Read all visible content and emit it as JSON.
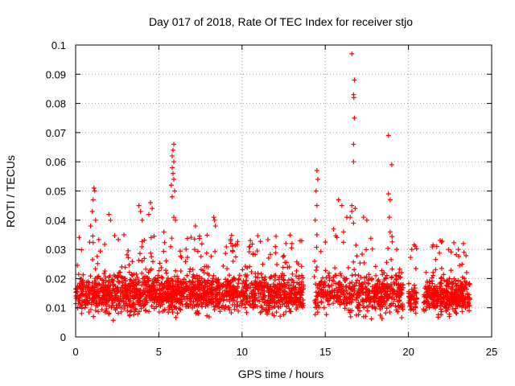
{
  "chart_data": {
    "type": "scatter",
    "title": "Day 017 of 2018, Rate Of TEC Index for receiver stjo",
    "xlabel": "GPS time / hours",
    "ylabel": "ROTI / TECUs",
    "xlim": [
      0,
      25
    ],
    "ylim": [
      0,
      0.1
    ],
    "xticks": [
      0,
      5,
      10,
      15,
      20,
      25
    ],
    "xtick_labels": [
      "0",
      "5",
      "10",
      "15",
      "20",
      "25"
    ],
    "yticks": [
      0,
      0.01,
      0.02,
      0.03,
      0.04,
      0.05,
      0.06,
      0.07,
      0.08,
      0.09,
      0.1
    ],
    "ytick_labels": [
      "0",
      "0.01",
      "0.02",
      "0.03",
      "0.04",
      "0.05",
      "0.06",
      "0.07",
      "0.08",
      "0.09",
      "0.1"
    ],
    "grid": true,
    "marker": "+",
    "color": "#ff0000",
    "series": [
      {
        "name": "ROTI",
        "bulk_segments": [
          {
            "x_start": 0.0,
            "x_end": 13.7,
            "y_base": 0.015,
            "y_spread": 0.009,
            "count": 1700
          },
          {
            "x_start": 14.3,
            "x_end": 19.7,
            "y_base": 0.015,
            "y_spread": 0.009,
            "count": 520
          },
          {
            "x_start": 20.0,
            "x_end": 20.5,
            "y_base": 0.013,
            "y_spread": 0.007,
            "count": 60
          },
          {
            "x_start": 20.9,
            "x_end": 23.7,
            "y_base": 0.014,
            "y_spread": 0.008,
            "count": 380
          }
        ],
        "notable_points": [
          {
            "x": 1.1,
            "y": 0.051
          },
          {
            "x": 1.15,
            "y": 0.05
          },
          {
            "x": 1.05,
            "y": 0.047
          },
          {
            "x": 1.0,
            "y": 0.043
          },
          {
            "x": 1.2,
            "y": 0.04
          },
          {
            "x": 0.9,
            "y": 0.038
          },
          {
            "x": 2.0,
            "y": 0.042
          },
          {
            "x": 2.1,
            "y": 0.04
          },
          {
            "x": 2.9,
            "y": 0.035
          },
          {
            "x": 3.8,
            "y": 0.045
          },
          {
            "x": 3.9,
            "y": 0.043
          },
          {
            "x": 4.0,
            "y": 0.04
          },
          {
            "x": 4.5,
            "y": 0.046
          },
          {
            "x": 4.6,
            "y": 0.044
          },
          {
            "x": 4.4,
            "y": 0.042
          },
          {
            "x": 5.3,
            "y": 0.036
          },
          {
            "x": 5.9,
            "y": 0.066
          },
          {
            "x": 5.85,
            "y": 0.064
          },
          {
            "x": 5.8,
            "y": 0.062
          },
          {
            "x": 5.9,
            "y": 0.06
          },
          {
            "x": 5.8,
            "y": 0.058
          },
          {
            "x": 5.85,
            "y": 0.056
          },
          {
            "x": 5.9,
            "y": 0.054
          },
          {
            "x": 5.75,
            "y": 0.052
          },
          {
            "x": 5.95,
            "y": 0.05
          },
          {
            "x": 5.8,
            "y": 0.048
          },
          {
            "x": 5.9,
            "y": 0.041
          },
          {
            "x": 6.0,
            "y": 0.04
          },
          {
            "x": 7.2,
            "y": 0.038
          },
          {
            "x": 8.3,
            "y": 0.041
          },
          {
            "x": 8.35,
            "y": 0.04
          },
          {
            "x": 8.4,
            "y": 0.038
          },
          {
            "x": 10.5,
            "y": 0.033
          },
          {
            "x": 13.0,
            "y": 0.032
          },
          {
            "x": 14.5,
            "y": 0.057
          },
          {
            "x": 14.55,
            "y": 0.054
          },
          {
            "x": 14.45,
            "y": 0.05
          },
          {
            "x": 14.5,
            "y": 0.045
          },
          {
            "x": 14.4,
            "y": 0.04
          },
          {
            "x": 14.5,
            "y": 0.035
          },
          {
            "x": 15.8,
            "y": 0.047
          },
          {
            "x": 16.0,
            "y": 0.045
          },
          {
            "x": 16.3,
            "y": 0.041
          },
          {
            "x": 16.1,
            "y": 0.036
          },
          {
            "x": 15.5,
            "y": 0.037
          },
          {
            "x": 16.6,
            "y": 0.097
          },
          {
            "x": 16.75,
            "y": 0.088
          },
          {
            "x": 16.7,
            "y": 0.083
          },
          {
            "x": 16.72,
            "y": 0.082
          },
          {
            "x": 16.75,
            "y": 0.075
          },
          {
            "x": 16.7,
            "y": 0.066
          },
          {
            "x": 16.7,
            "y": 0.06
          },
          {
            "x": 16.6,
            "y": 0.045
          },
          {
            "x": 16.8,
            "y": 0.044
          },
          {
            "x": 16.6,
            "y": 0.043
          },
          {
            "x": 16.5,
            "y": 0.041
          },
          {
            "x": 16.7,
            "y": 0.039
          },
          {
            "x": 17.3,
            "y": 0.041
          },
          {
            "x": 17.5,
            "y": 0.04
          },
          {
            "x": 18.8,
            "y": 0.069
          },
          {
            "x": 19.0,
            "y": 0.059
          },
          {
            "x": 18.8,
            "y": 0.049
          },
          {
            "x": 18.9,
            "y": 0.047
          },
          {
            "x": 18.85,
            "y": 0.041
          },
          {
            "x": 18.9,
            "y": 0.036
          },
          {
            "x": 19.3,
            "y": 0.03
          },
          {
            "x": 20.2,
            "y": 0.03
          },
          {
            "x": 21.7,
            "y": 0.031
          },
          {
            "x": 23.3,
            "y": 0.032
          },
          {
            "x": 23.0,
            "y": 0.03
          }
        ]
      }
    ]
  }
}
